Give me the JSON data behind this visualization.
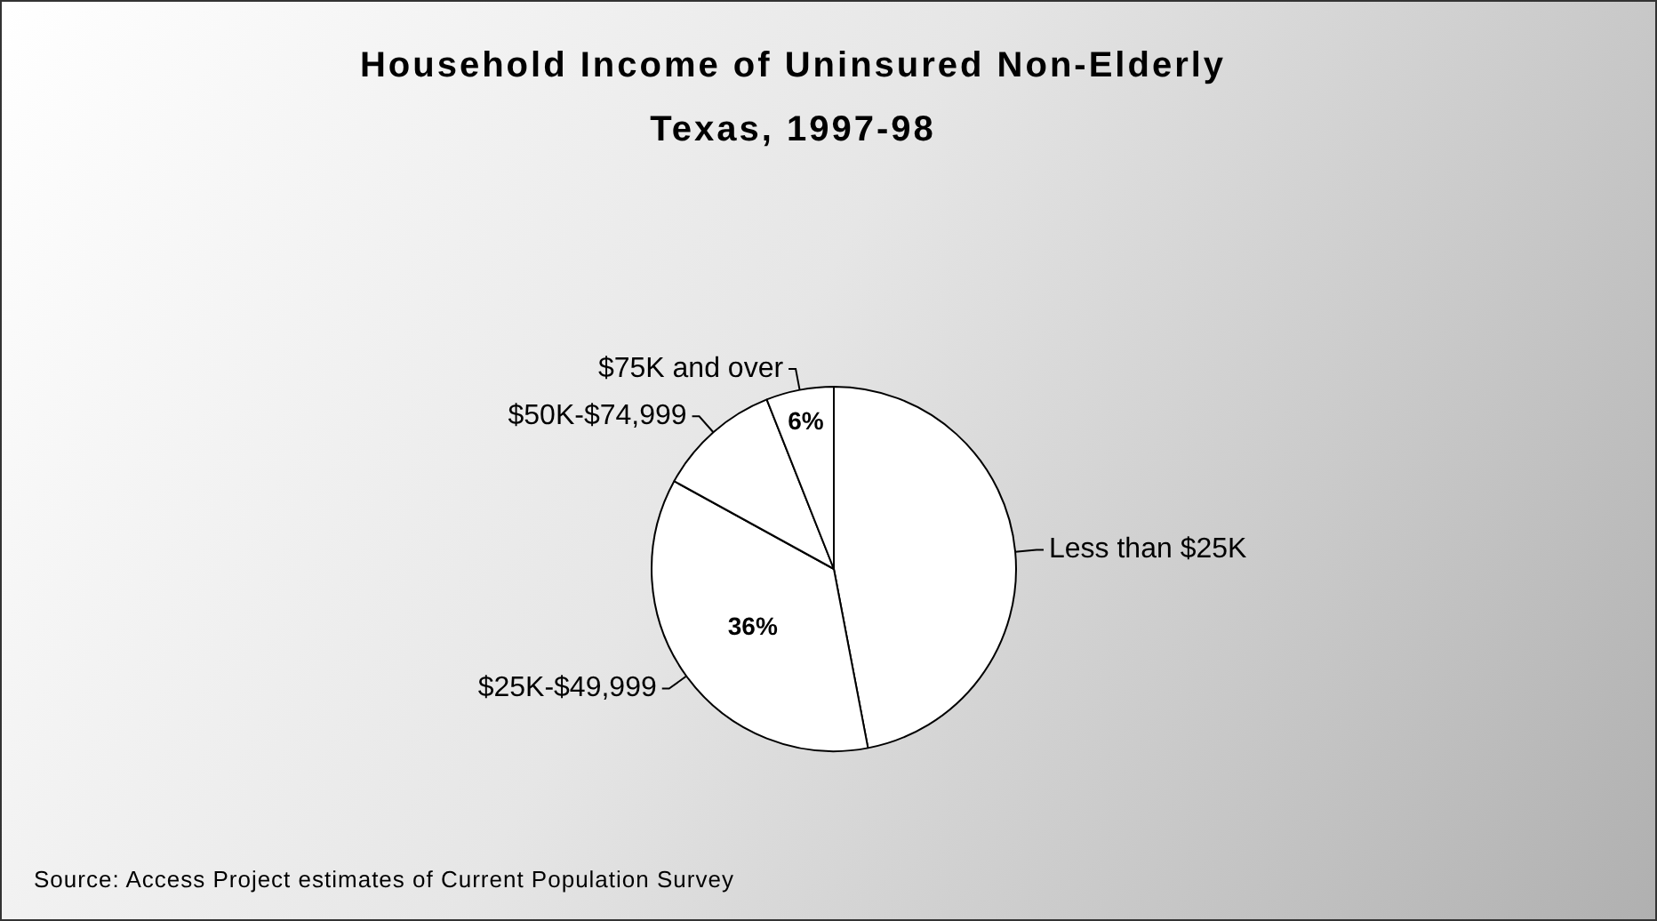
{
  "chart_data": {
    "type": "pie",
    "title": "Household Income of Uninsured Non-Elderly Texas, 1997-98",
    "categories": [
      "Less than $25K",
      "$25K-$49,999",
      "$50K-$74,999",
      "$75K and over"
    ],
    "values": [
      47,
      36,
      11,
      6
    ],
    "colors": [
      "#ffffff",
      "#ffffff",
      "#ffffff",
      "#ffffff"
    ],
    "value_labels": [
      null,
      "36%",
      null,
      "6%"
    ],
    "annotations": [
      "Source: Access Project estimates of Current Population Survey"
    ]
  }
}
